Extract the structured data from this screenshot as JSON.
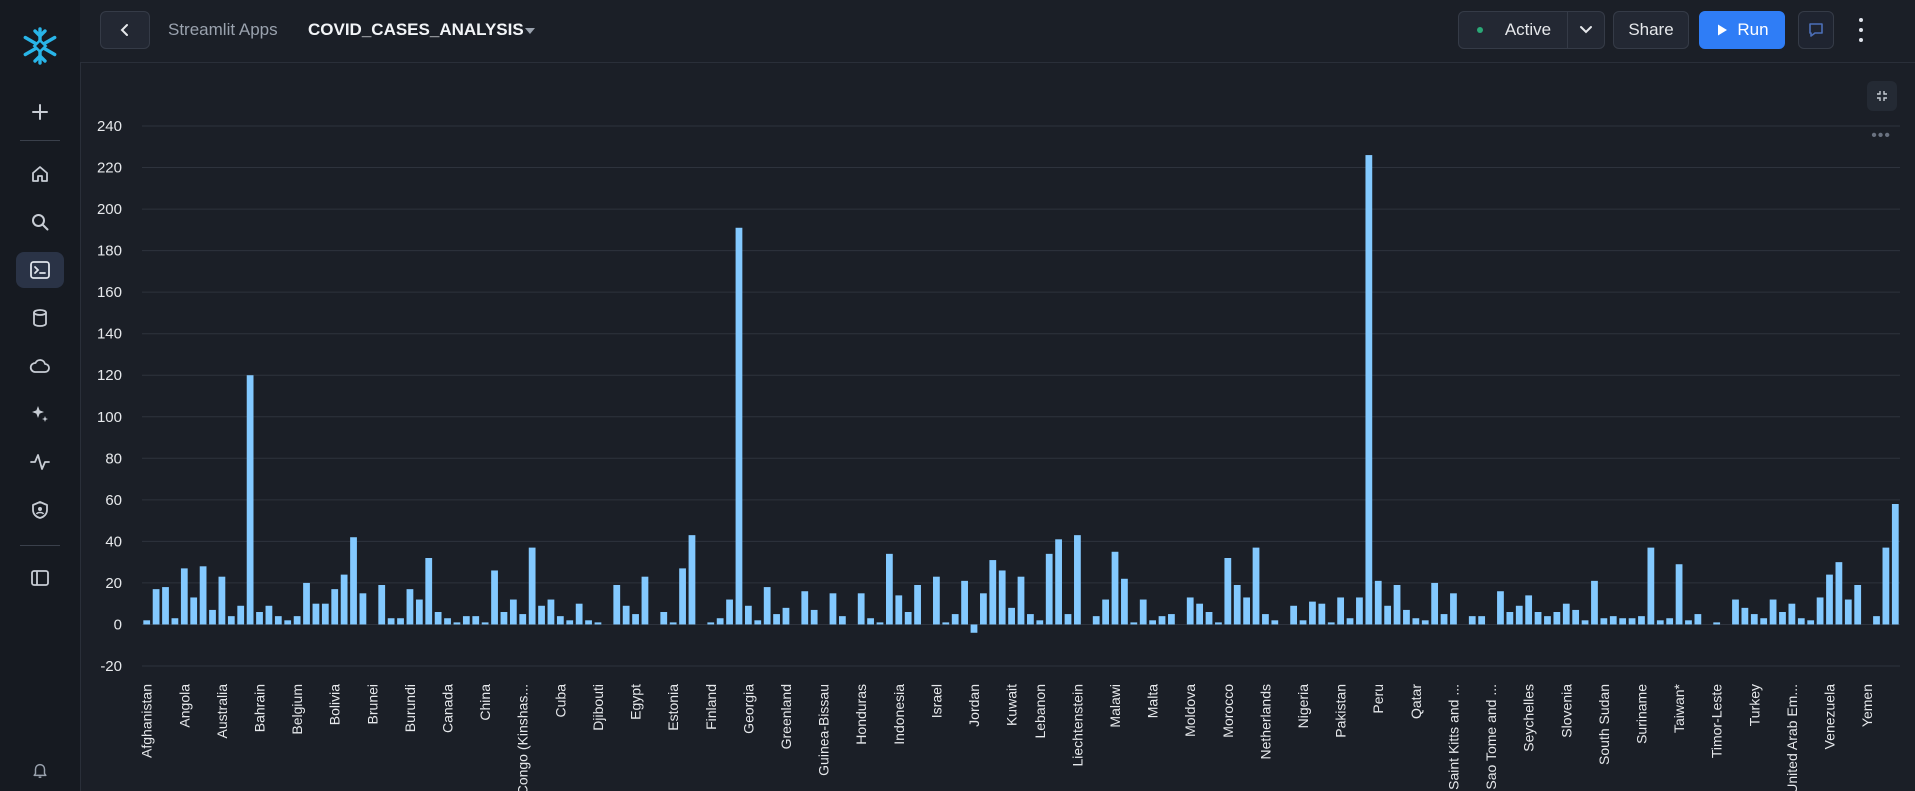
{
  "rail": {
    "items": [
      {
        "name": "new-icon"
      },
      {
        "name": "home-icon"
      },
      {
        "name": "search-icon"
      },
      {
        "name": "projects-icon"
      },
      {
        "name": "data-icon"
      },
      {
        "name": "cloud-icon"
      },
      {
        "name": "ai-icon"
      },
      {
        "name": "monitoring-icon"
      },
      {
        "name": "admin-icon"
      },
      {
        "name": "panel-icon"
      },
      {
        "name": "bell-icon"
      }
    ]
  },
  "topbar": {
    "breadcrumb_parent": "Streamlit Apps",
    "app_name": "COVID_CASES_ANALYSIS",
    "status_label": "Active",
    "share_label": "Share",
    "run_label": "Run"
  },
  "colors": {
    "accent": "#2f7df6",
    "bar": "#83c9ff",
    "status_dot": "#2aa876"
  },
  "chart_data": {
    "type": "bar",
    "ylim": [
      -20,
      240
    ],
    "yticks": [
      -20,
      0,
      20,
      40,
      60,
      80,
      100,
      120,
      140,
      160,
      180,
      200,
      220,
      240
    ],
    "tick_labels": [
      "Afghanistan",
      "Angola",
      "Australia",
      "Bahrain",
      "Belgium",
      "Bolivia",
      "Brunei",
      "Burundi",
      "Canada",
      "China",
      "Congo (Kinshas...",
      "Cuba",
      "Djibouti",
      "Egypt",
      "Estonia",
      "Finland",
      "Georgia",
      "Greenland",
      "Guinea-Bissau",
      "Honduras",
      "Indonesia",
      "Israel",
      "Jordan",
      "Kuwait",
      "Lebanon",
      "Liechtenstein",
      "Malawi",
      "Malta",
      "Moldova",
      "Morocco",
      "Netherlands",
      "Nigeria",
      "Pakistan",
      "Peru",
      "Qatar",
      "Saint Kitts and ...",
      "Sao Tome and ...",
      "Seychelles",
      "Slovenia",
      "South Sudan",
      "Suriname",
      "Taiwan*",
      "Timor-Leste",
      "Turkey",
      "United Arab Em...",
      "Venezuela",
      "Yemen"
    ],
    "values": [
      2,
      17,
      18,
      3,
      27,
      13,
      28,
      7,
      23,
      4,
      9,
      120,
      6,
      9,
      4,
      2,
      4,
      20,
      10,
      10,
      17,
      24,
      42,
      15,
      0,
      19,
      3,
      3,
      17,
      12,
      32,
      6,
      3,
      1,
      4,
      4,
      1,
      26,
      6,
      12,
      5,
      37,
      9,
      12,
      4,
      2,
      10,
      2,
      1,
      0,
      19,
      9,
      5,
      23,
      0,
      6,
      1,
      27,
      43,
      0,
      1,
      3,
      12,
      191,
      9,
      2,
      18,
      5,
      8,
      0,
      16,
      7,
      0,
      15,
      4,
      0,
      15,
      3,
      1,
      34,
      14,
      6,
      19,
      0,
      23,
      1,
      5,
      21,
      -4,
      15,
      31,
      26,
      8,
      23,
      5,
      2,
      34,
      41,
      5,
      43,
      0,
      4,
      12,
      35,
      22,
      1,
      12,
      2,
      4,
      5,
      0,
      13,
      10,
      6,
      1,
      32,
      19,
      13,
      37,
      5,
      2,
      0,
      9,
      2,
      11,
      10,
      1,
      13,
      3,
      13,
      226,
      21,
      9,
      19,
      7,
      3,
      2,
      20,
      5,
      15,
      0,
      4,
      4,
      0,
      16,
      6,
      9,
      14,
      6,
      4,
      6,
      10,
      7,
      2,
      21,
      3,
      4,
      3,
      3,
      4,
      37,
      2,
      3,
      29,
      2,
      5,
      0,
      1,
      0,
      12,
      8,
      5,
      3,
      12,
      6,
      10,
      3,
      2,
      13,
      24,
      30,
      12,
      19,
      0,
      4,
      37,
      58
    ]
  }
}
